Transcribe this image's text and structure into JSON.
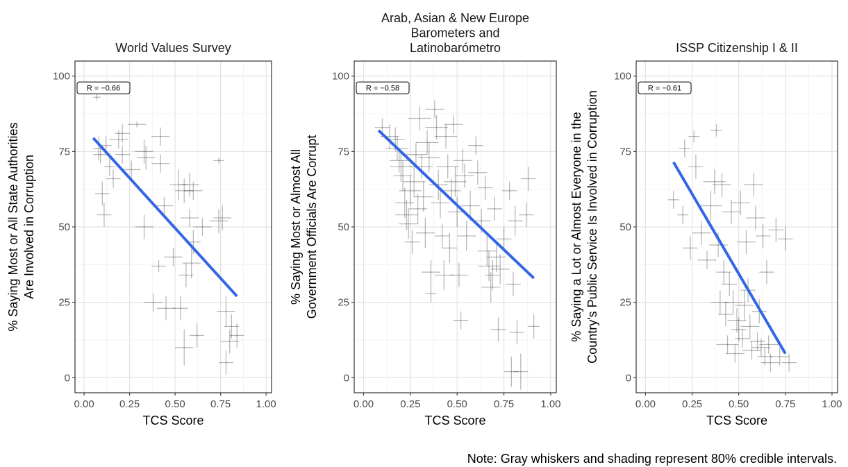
{
  "note": "Note: Gray whiskers and shading represent 80% credible intervals.",
  "chart_data": [
    {
      "type": "scatter",
      "title_lines": [
        "World Values Survey"
      ],
      "xlabel": "TCS Score",
      "ylabel_lines": [
        "% Saying Most or All State Authorities",
        "Are Involved in Corruption"
      ],
      "xlim": [
        -0.05,
        1.03
      ],
      "ylim": [
        -5,
        105
      ],
      "xticks": [
        0,
        0.25,
        0.5,
        0.75,
        1
      ],
      "xtick_labels": [
        "0.00",
        "0.25",
        "0.50",
        "0.75",
        "1.00"
      ],
      "yticks": [
        0,
        25,
        50,
        75,
        100
      ],
      "ytick_labels": [
        "0",
        "25",
        "50",
        "75",
        "100"
      ],
      "grid": true,
      "correlation_label": "R = −0.66",
      "fit_line": {
        "x": [
          0.05,
          0.84
        ],
        "y": [
          79.5,
          27
        ]
      },
      "points": [
        {
          "x": 0.07,
          "y": 93,
          "ex": 0.02,
          "ey": 1
        },
        {
          "x": 0.08,
          "y": 76,
          "ex": 0.03,
          "ey": 4
        },
        {
          "x": 0.09,
          "y": 74,
          "ex": 0.04,
          "ey": 3
        },
        {
          "x": 0.12,
          "y": 77,
          "ex": 0.03,
          "ey": 3
        },
        {
          "x": 0.1,
          "y": 61,
          "ex": 0.04,
          "ey": 4
        },
        {
          "x": 0.11,
          "y": 54,
          "ex": 0.04,
          "ey": 4
        },
        {
          "x": 0.14,
          "y": 70,
          "ex": 0.03,
          "ey": 3
        },
        {
          "x": 0.16,
          "y": 66,
          "ex": 0.04,
          "ey": 3
        },
        {
          "x": 0.19,
          "y": 79,
          "ex": 0.05,
          "ey": 3
        },
        {
          "x": 0.21,
          "y": 81,
          "ex": 0.04,
          "ey": 3
        },
        {
          "x": 0.21,
          "y": 74,
          "ex": 0.04,
          "ey": 3
        },
        {
          "x": 0.26,
          "y": 69,
          "ex": 0.05,
          "ey": 3
        },
        {
          "x": 0.29,
          "y": 84,
          "ex": 0.05,
          "ey": 1
        },
        {
          "x": 0.33,
          "y": 75,
          "ex": 0.05,
          "ey": 4
        },
        {
          "x": 0.34,
          "y": 73,
          "ex": 0.05,
          "ey": 4
        },
        {
          "x": 0.33,
          "y": 50,
          "ex": 0.05,
          "ey": 4
        },
        {
          "x": 0.38,
          "y": 25,
          "ex": 0.05,
          "ey": 3
        },
        {
          "x": 0.42,
          "y": 80,
          "ex": 0.05,
          "ey": 3
        },
        {
          "x": 0.42,
          "y": 71,
          "ex": 0.05,
          "ey": 3
        },
        {
          "x": 0.41,
          "y": 37,
          "ex": 0.04,
          "ey": 2
        },
        {
          "x": 0.44,
          "y": 57,
          "ex": 0.05,
          "ey": 3
        },
        {
          "x": 0.45,
          "y": 23,
          "ex": 0.05,
          "ey": 4
        },
        {
          "x": 0.49,
          "y": 40,
          "ex": 0.05,
          "ey": 3
        },
        {
          "x": 0.52,
          "y": 64,
          "ex": 0.05,
          "ey": 5
        },
        {
          "x": 0.53,
          "y": 23,
          "ex": 0.04,
          "ey": 4
        },
        {
          "x": 0.55,
          "y": 62,
          "ex": 0.05,
          "ey": 4
        },
        {
          "x": 0.55,
          "y": 10,
          "ex": 0.05,
          "ey": 6
        },
        {
          "x": 0.56,
          "y": 34,
          "ex": 0.04,
          "ey": 4
        },
        {
          "x": 0.58,
          "y": 64,
          "ex": 0.05,
          "ey": 4
        },
        {
          "x": 0.58,
          "y": 53,
          "ex": 0.05,
          "ey": 3
        },
        {
          "x": 0.59,
          "y": 38,
          "ex": 0.05,
          "ey": 5
        },
        {
          "x": 0.6,
          "y": 62,
          "ex": 0.05,
          "ey": 3
        },
        {
          "x": 0.6,
          "y": 45,
          "ex": 0.04,
          "ey": 4
        },
        {
          "x": 0.62,
          "y": 14,
          "ex": 0.04,
          "ey": 4
        },
        {
          "x": 0.65,
          "y": 50,
          "ex": 0.05,
          "ey": 3
        },
        {
          "x": 0.74,
          "y": 72,
          "ex": 0.03,
          "ey": 1
        },
        {
          "x": 0.74,
          "y": 52,
          "ex": 0.05,
          "ey": 4
        },
        {
          "x": 0.76,
          "y": 53,
          "ex": 0.05,
          "ey": 4
        },
        {
          "x": 0.78,
          "y": 22,
          "ex": 0.05,
          "ey": 5
        },
        {
          "x": 0.78,
          "y": 5,
          "ex": 0.04,
          "ey": 4
        },
        {
          "x": 0.8,
          "y": 12,
          "ex": 0.05,
          "ey": 4
        },
        {
          "x": 0.81,
          "y": 17,
          "ex": 0.04,
          "ey": 4
        },
        {
          "x": 0.84,
          "y": 14,
          "ex": 0.04,
          "ey": 4
        }
      ]
    },
    {
      "type": "scatter",
      "title_lines": [
        "Arab, Asian & New Europe",
        "Barometers and",
        "Latinobarómetro"
      ],
      "xlabel": "TCS Score",
      "ylabel_lines": [
        "% Saying Most or Almost All",
        "Government Officials Are Corrupt"
      ],
      "xlim": [
        -0.05,
        1.03
      ],
      "ylim": [
        -5,
        105
      ],
      "xticks": [
        0,
        0.25,
        0.5,
        0.75,
        1
      ],
      "xtick_labels": [
        "0.00",
        "0.25",
        "0.50",
        "0.75",
        "1.00"
      ],
      "yticks": [
        0,
        25,
        50,
        75,
        100
      ],
      "ytick_labels": [
        "0",
        "25",
        "50",
        "75",
        "100"
      ],
      "grid": true,
      "correlation_label": "R = −0.58",
      "fit_line": {
        "x": [
          0.08,
          0.91
        ],
        "y": [
          82,
          33
        ]
      },
      "points": [
        {
          "x": 0.1,
          "y": 83,
          "ex": 0.04,
          "ey": 3
        },
        {
          "x": 0.14,
          "y": 80,
          "ex": 0.05,
          "ey": 4
        },
        {
          "x": 0.17,
          "y": 79,
          "ex": 0.05,
          "ey": 4
        },
        {
          "x": 0.18,
          "y": 76,
          "ex": 0.06,
          "ey": 4
        },
        {
          "x": 0.19,
          "y": 72,
          "ex": 0.05,
          "ey": 4
        },
        {
          "x": 0.2,
          "y": 70,
          "ex": 0.06,
          "ey": 5
        },
        {
          "x": 0.21,
          "y": 67,
          "ex": 0.05,
          "ey": 5
        },
        {
          "x": 0.22,
          "y": 58,
          "ex": 0.05,
          "ey": 5
        },
        {
          "x": 0.23,
          "y": 54,
          "ex": 0.06,
          "ey": 5
        },
        {
          "x": 0.24,
          "y": 51,
          "ex": 0.05,
          "ey": 5
        },
        {
          "x": 0.25,
          "y": 62,
          "ex": 0.06,
          "ey": 5
        },
        {
          "x": 0.26,
          "y": 45,
          "ex": 0.04,
          "ey": 4
        },
        {
          "x": 0.27,
          "y": 65,
          "ex": 0.06,
          "ey": 5
        },
        {
          "x": 0.28,
          "y": 74,
          "ex": 0.06,
          "ey": 4
        },
        {
          "x": 0.29,
          "y": 56,
          "ex": 0.05,
          "ey": 5
        },
        {
          "x": 0.3,
          "y": 86,
          "ex": 0.06,
          "ey": 4
        },
        {
          "x": 0.31,
          "y": 70,
          "ex": 0.06,
          "ey": 4
        },
        {
          "x": 0.32,
          "y": 60,
          "ex": 0.05,
          "ey": 5
        },
        {
          "x": 0.33,
          "y": 48,
          "ex": 0.05,
          "ey": 5
        },
        {
          "x": 0.34,
          "y": 78,
          "ex": 0.06,
          "ey": 4
        },
        {
          "x": 0.35,
          "y": 73,
          "ex": 0.06,
          "ey": 5
        },
        {
          "x": 0.36,
          "y": 35,
          "ex": 0.05,
          "ey": 4
        },
        {
          "x": 0.36,
          "y": 28,
          "ex": 0.03,
          "ey": 3
        },
        {
          "x": 0.38,
          "y": 89,
          "ex": 0.05,
          "ey": 3
        },
        {
          "x": 0.39,
          "y": 83,
          "ex": 0.06,
          "ey": 4
        },
        {
          "x": 0.4,
          "y": 64,
          "ex": 0.05,
          "ey": 5
        },
        {
          "x": 0.41,
          "y": 58,
          "ex": 0.05,
          "ey": 5
        },
        {
          "x": 0.42,
          "y": 47,
          "ex": 0.04,
          "ey": 4
        },
        {
          "x": 0.43,
          "y": 34,
          "ex": 0.05,
          "ey": 5
        },
        {
          "x": 0.44,
          "y": 80,
          "ex": 0.06,
          "ey": 4
        },
        {
          "x": 0.45,
          "y": 70,
          "ex": 0.06,
          "ey": 4
        },
        {
          "x": 0.46,
          "y": 43,
          "ex": 0.04,
          "ey": 5
        },
        {
          "x": 0.47,
          "y": 62,
          "ex": 0.05,
          "ey": 4
        },
        {
          "x": 0.48,
          "y": 84,
          "ex": 0.05,
          "ey": 3
        },
        {
          "x": 0.49,
          "y": 65,
          "ex": 0.06,
          "ey": 5
        },
        {
          "x": 0.5,
          "y": 55,
          "ex": 0.05,
          "ey": 5
        },
        {
          "x": 0.51,
          "y": 34,
          "ex": 0.05,
          "ey": 4
        },
        {
          "x": 0.52,
          "y": 19,
          "ex": 0.04,
          "ey": 3
        },
        {
          "x": 0.53,
          "y": 72,
          "ex": 0.05,
          "ey": 4
        },
        {
          "x": 0.54,
          "y": 67,
          "ex": 0.05,
          "ey": 4
        },
        {
          "x": 0.55,
          "y": 47,
          "ex": 0.05,
          "ey": 5
        },
        {
          "x": 0.57,
          "y": 57,
          "ex": 0.05,
          "ey": 5
        },
        {
          "x": 0.6,
          "y": 77,
          "ex": 0.04,
          "ey": 3
        },
        {
          "x": 0.61,
          "y": 68,
          "ex": 0.05,
          "ey": 4
        },
        {
          "x": 0.63,
          "y": 52,
          "ex": 0.05,
          "ey": 4
        },
        {
          "x": 0.65,
          "y": 63,
          "ex": 0.04,
          "ey": 4
        },
        {
          "x": 0.66,
          "y": 42,
          "ex": 0.05,
          "ey": 5
        },
        {
          "x": 0.67,
          "y": 37,
          "ex": 0.06,
          "ey": 5
        },
        {
          "x": 0.68,
          "y": 30,
          "ex": 0.05,
          "ey": 5
        },
        {
          "x": 0.69,
          "y": 34,
          "ex": 0.04,
          "ey": 5
        },
        {
          "x": 0.7,
          "y": 56,
          "ex": 0.04,
          "ey": 4
        },
        {
          "x": 0.71,
          "y": 40,
          "ex": 0.05,
          "ey": 5
        },
        {
          "x": 0.72,
          "y": 16,
          "ex": 0.04,
          "ey": 4
        },
        {
          "x": 0.73,
          "y": 36,
          "ex": 0.05,
          "ey": 5
        },
        {
          "x": 0.75,
          "y": 46,
          "ex": 0.04,
          "ey": 4
        },
        {
          "x": 0.78,
          "y": 62,
          "ex": 0.04,
          "ey": 3
        },
        {
          "x": 0.79,
          "y": 2,
          "ex": 0.04,
          "ey": 5
        },
        {
          "x": 0.8,
          "y": 31,
          "ex": 0.04,
          "ey": 4
        },
        {
          "x": 0.81,
          "y": 52,
          "ex": 0.04,
          "ey": 5
        },
        {
          "x": 0.82,
          "y": 15,
          "ex": 0.04,
          "ey": 4
        },
        {
          "x": 0.84,
          "y": 2,
          "ex": 0.04,
          "ey": 6
        },
        {
          "x": 0.87,
          "y": 54,
          "ex": 0.04,
          "ey": 4
        },
        {
          "x": 0.88,
          "y": 66,
          "ex": 0.04,
          "ey": 4
        },
        {
          "x": 0.91,
          "y": 17,
          "ex": 0.03,
          "ey": 4
        }
      ]
    },
    {
      "type": "scatter",
      "title_lines": [
        "ISSP Citizenship I & II"
      ],
      "xlabel": "TCS Score",
      "ylabel_lines": [
        "% Saying a Lot or Almost Everyone in the",
        "Country's Public Service Is Involved in Corruption"
      ],
      "xlim": [
        -0.05,
        1.03
      ],
      "ylim": [
        -5,
        105
      ],
      "xticks": [
        0,
        0.25,
        0.5,
        0.75,
        1
      ],
      "xtick_labels": [
        "0.00",
        "0.25",
        "0.50",
        "0.75",
        "1.00"
      ],
      "yticks": [
        0,
        25,
        50,
        75,
        100
      ],
      "ytick_labels": [
        "0",
        "25",
        "50",
        "75",
        "100"
      ],
      "grid": true,
      "correlation_label": "R = −0.61",
      "fit_line": {
        "x": [
          0.15,
          0.75
        ],
        "y": [
          71.5,
          8
        ]
      },
      "points": [
        {
          "x": 0.15,
          "y": 59,
          "ex": 0.03,
          "ey": 3
        },
        {
          "x": 0.2,
          "y": 54,
          "ex": 0.03,
          "ey": 3
        },
        {
          "x": 0.21,
          "y": 76,
          "ex": 0.03,
          "ey": 3
        },
        {
          "x": 0.24,
          "y": 43,
          "ex": 0.04,
          "ey": 4
        },
        {
          "x": 0.26,
          "y": 80,
          "ex": 0.03,
          "ey": 2
        },
        {
          "x": 0.27,
          "y": 70,
          "ex": 0.04,
          "ey": 4
        },
        {
          "x": 0.3,
          "y": 48,
          "ex": 0.05,
          "ey": 4
        },
        {
          "x": 0.33,
          "y": 39,
          "ex": 0.05,
          "ey": 3
        },
        {
          "x": 0.35,
          "y": 57,
          "ex": 0.06,
          "ey": 5
        },
        {
          "x": 0.37,
          "y": 65,
          "ex": 0.06,
          "ey": 4
        },
        {
          "x": 0.38,
          "y": 82,
          "ex": 0.03,
          "ey": 2
        },
        {
          "x": 0.39,
          "y": 44,
          "ex": 0.05,
          "ey": 4
        },
        {
          "x": 0.4,
          "y": 25,
          "ex": 0.05,
          "ey": 4
        },
        {
          "x": 0.41,
          "y": 64,
          "ex": 0.05,
          "ey": 4
        },
        {
          "x": 0.42,
          "y": 35,
          "ex": 0.04,
          "ey": 4
        },
        {
          "x": 0.43,
          "y": 21,
          "ex": 0.04,
          "ey": 4
        },
        {
          "x": 0.44,
          "y": 11,
          "ex": 0.06,
          "ey": 3
        },
        {
          "x": 0.45,
          "y": 31,
          "ex": 0.04,
          "ey": 4
        },
        {
          "x": 0.46,
          "y": 55,
          "ex": 0.05,
          "ey": 4
        },
        {
          "x": 0.47,
          "y": 25,
          "ex": 0.05,
          "ey": 4
        },
        {
          "x": 0.48,
          "y": 8,
          "ex": 0.05,
          "ey": 3
        },
        {
          "x": 0.49,
          "y": 19,
          "ex": 0.05,
          "ey": 4
        },
        {
          "x": 0.5,
          "y": 16,
          "ex": 0.04,
          "ey": 4
        },
        {
          "x": 0.51,
          "y": 58,
          "ex": 0.05,
          "ey": 4
        },
        {
          "x": 0.52,
          "y": 13,
          "ex": 0.04,
          "ey": 3
        },
        {
          "x": 0.53,
          "y": 24,
          "ex": 0.05,
          "ey": 5
        },
        {
          "x": 0.54,
          "y": 45,
          "ex": 0.05,
          "ey": 4
        },
        {
          "x": 0.55,
          "y": 29,
          "ex": 0.04,
          "ey": 4
        },
        {
          "x": 0.56,
          "y": 17,
          "ex": 0.05,
          "ey": 4
        },
        {
          "x": 0.57,
          "y": 9,
          "ex": 0.05,
          "ey": 3
        },
        {
          "x": 0.58,
          "y": 64,
          "ex": 0.05,
          "ey": 4
        },
        {
          "x": 0.59,
          "y": 53,
          "ex": 0.05,
          "ey": 4
        },
        {
          "x": 0.6,
          "y": 12,
          "ex": 0.04,
          "ey": 3
        },
        {
          "x": 0.61,
          "y": 22,
          "ex": 0.04,
          "ey": 4
        },
        {
          "x": 0.62,
          "y": 10,
          "ex": 0.05,
          "ey": 3
        },
        {
          "x": 0.63,
          "y": 47,
          "ex": 0.04,
          "ey": 4
        },
        {
          "x": 0.64,
          "y": 7,
          "ex": 0.04,
          "ey": 3
        },
        {
          "x": 0.65,
          "y": 35,
          "ex": 0.04,
          "ey": 4
        },
        {
          "x": 0.66,
          "y": 11,
          "ex": 0.05,
          "ey": 3
        },
        {
          "x": 0.67,
          "y": 5,
          "ex": 0.05,
          "ey": 3
        },
        {
          "x": 0.7,
          "y": 49,
          "ex": 0.04,
          "ey": 4
        },
        {
          "x": 0.72,
          "y": 7,
          "ex": 0.05,
          "ey": 3
        },
        {
          "x": 0.75,
          "y": 46,
          "ex": 0.04,
          "ey": 4
        },
        {
          "x": 0.77,
          "y": 5,
          "ex": 0.04,
          "ey": 3
        }
      ]
    }
  ]
}
